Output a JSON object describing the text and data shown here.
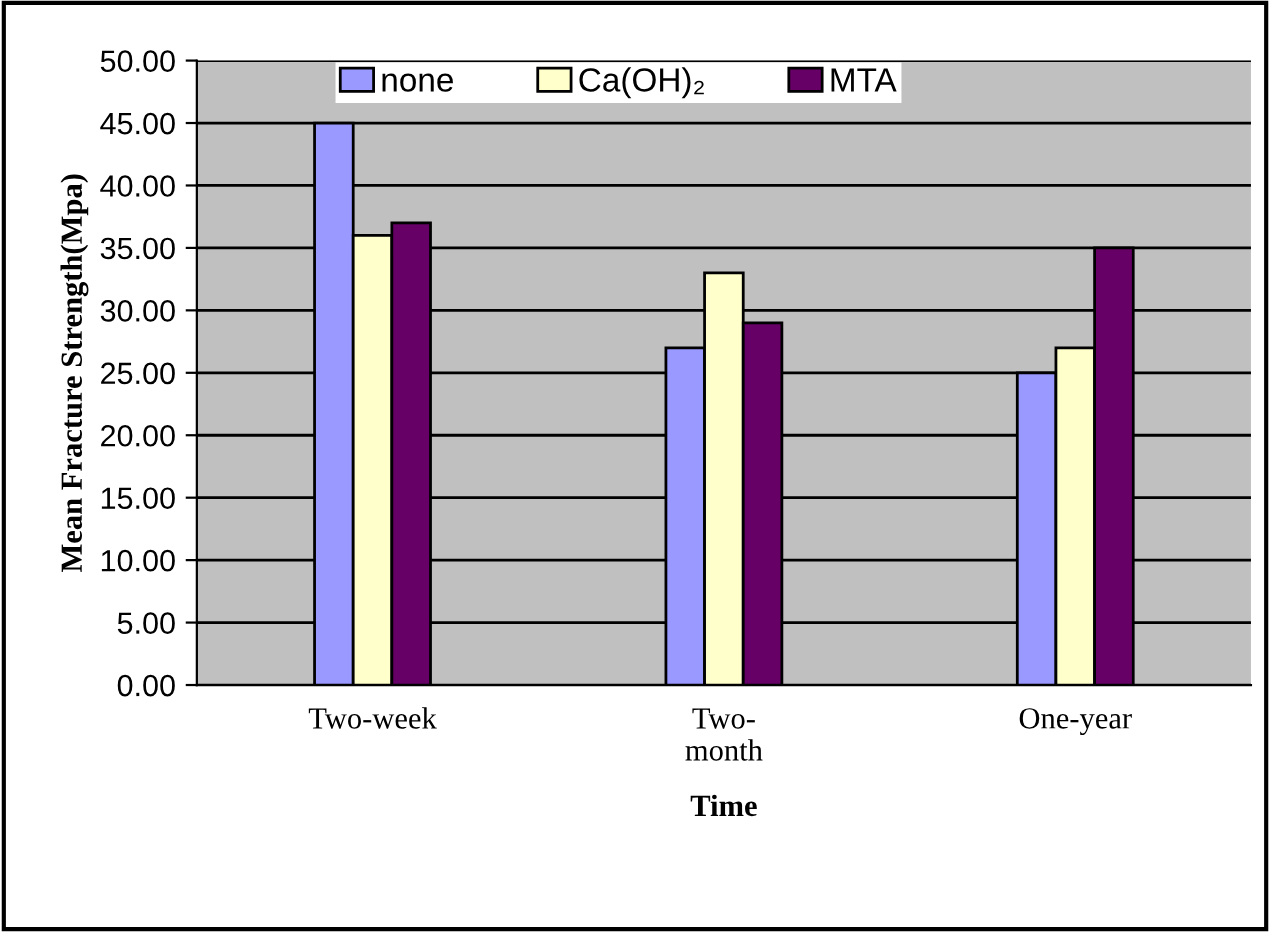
{
  "chart_data": {
    "type": "bar",
    "xlabel": "Time",
    "ylabel": "Mean Fracture Strength(Mpa)",
    "categories": [
      "Two-week",
      "Two-\nmonth",
      "One-year"
    ],
    "series": [
      {
        "name": "none",
        "color": "#9999ff",
        "values": [
          45,
          27,
          25
        ]
      },
      {
        "name": "Ca(OH)₂",
        "color": "#ffffcc",
        "values": [
          36,
          33,
          27
        ]
      },
      {
        "name": "MTA",
        "color": "#660066",
        "values": [
          37,
          29,
          35
        ]
      }
    ],
    "ylim": [
      0,
      50
    ],
    "yticks": [
      {
        "value": 0,
        "label": "0.00"
      },
      {
        "value": 5,
        "label": "5.00"
      },
      {
        "value": 10,
        "label": "10.00"
      },
      {
        "value": 15,
        "label": "15.00"
      },
      {
        "value": 20,
        "label": "20.00"
      },
      {
        "value": 25,
        "label": "25.00"
      },
      {
        "value": 30,
        "label": "30.00"
      },
      {
        "value": 35,
        "label": "35.00"
      },
      {
        "value": 40,
        "label": "40.00"
      },
      {
        "value": 45,
        "label": "45.00"
      },
      {
        "value": 50,
        "label": "50.00"
      }
    ],
    "grid": "y",
    "legend": "top"
  }
}
